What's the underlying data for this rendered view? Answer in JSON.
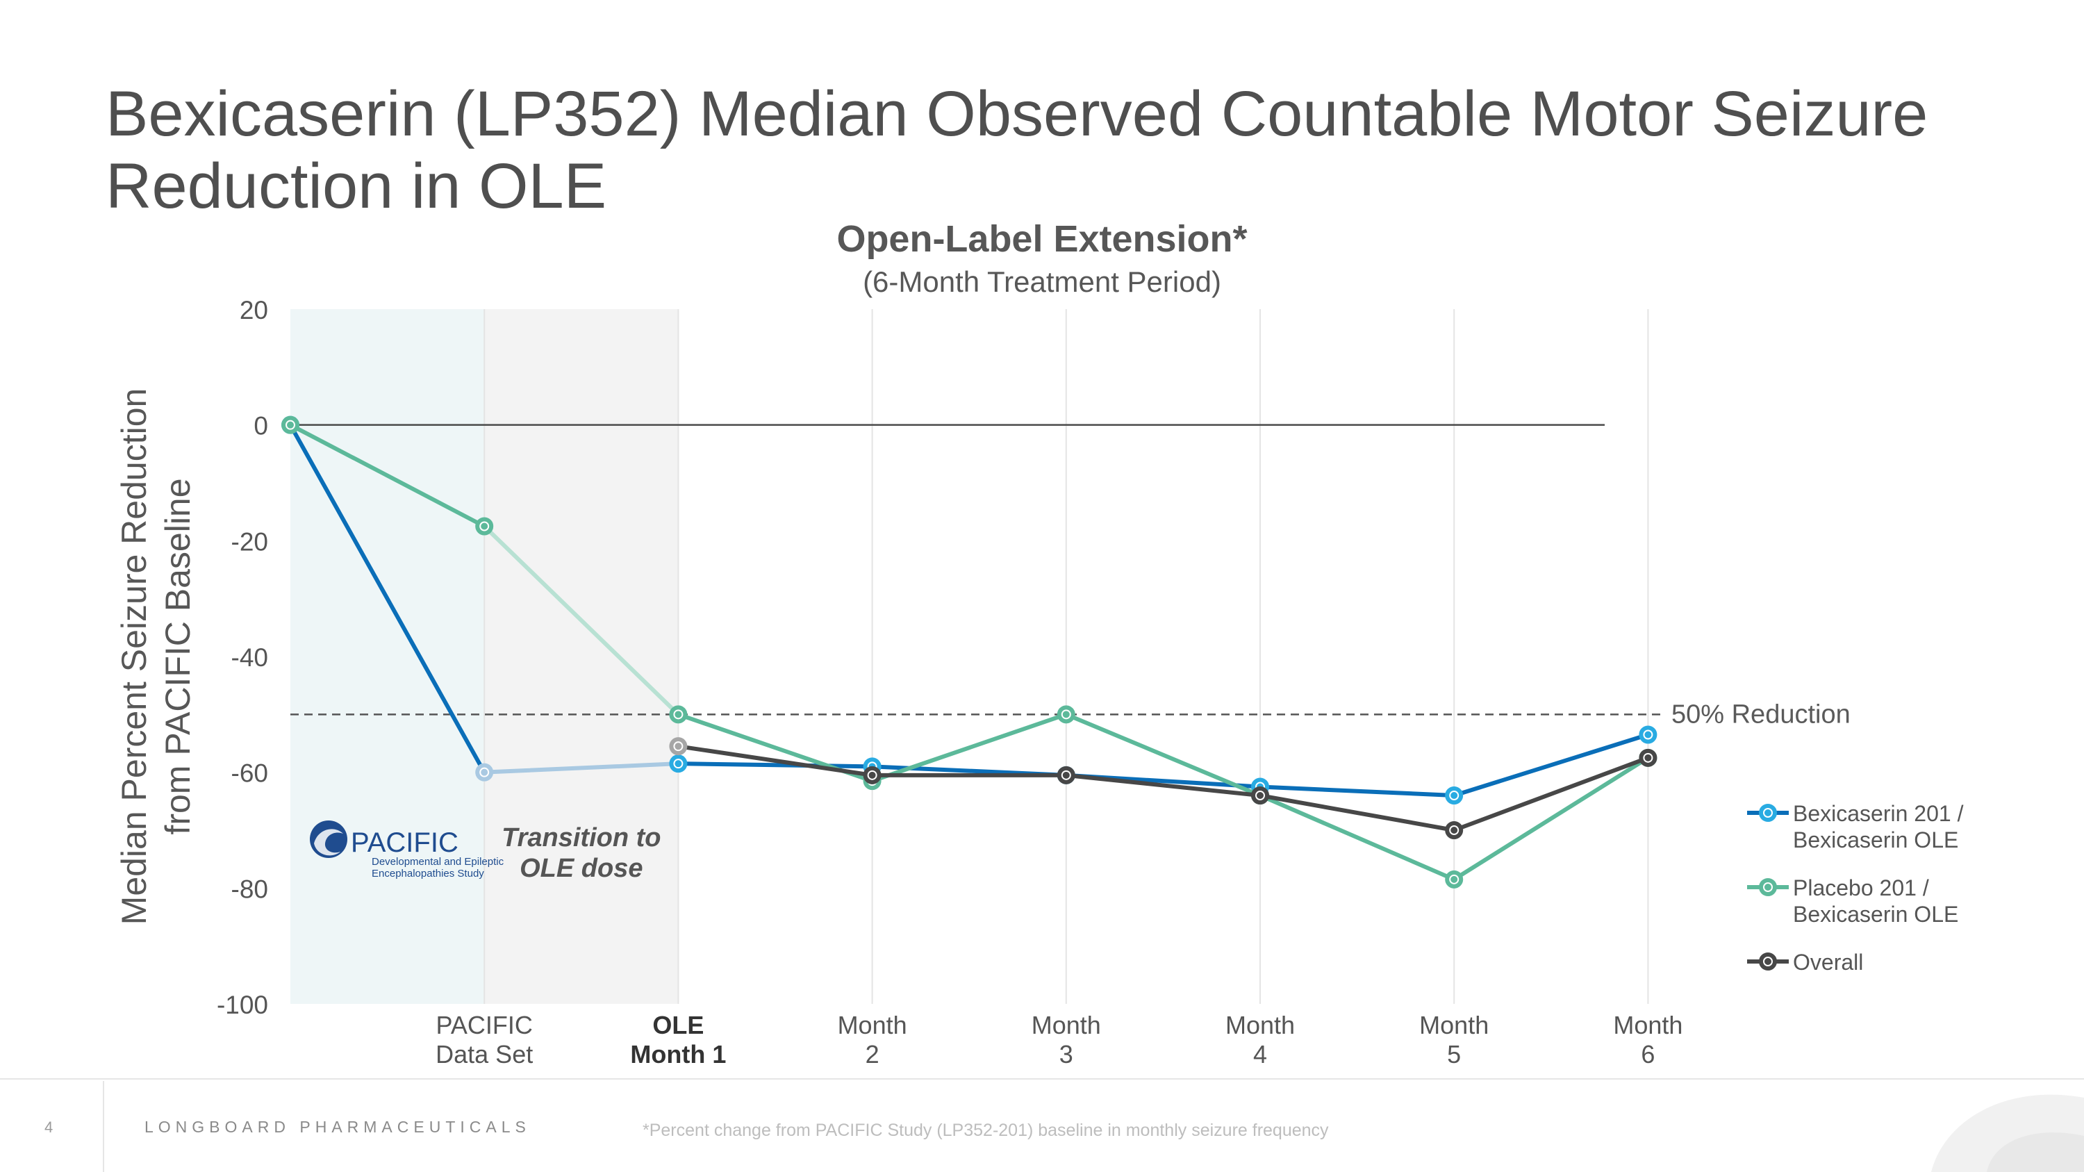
{
  "title": "Bexicaserin (LP352) Median Observed Countable Motor Seizure Reduction in OLE",
  "page_number": "4",
  "company": "LONGBOARD PHARMACEUTICALS",
  "footnote": "*Percent change from PACIFIC Study (LP352-201) baseline in monthly seizure frequency",
  "logo": {
    "name": "PACIFIC",
    "subtitle_line1": "Developmental and Epileptic",
    "subtitle_line2": "Encephalopathies Study"
  },
  "colors": {
    "bexicaserin": "#0a6eb8",
    "bexicaserin_marker": "#29abe2",
    "placebo": "#5cb99a",
    "placebo_faded": "#b8e1d3",
    "bexicaserin_faded": "#a9c9e2",
    "overall": "#474747",
    "overall_faded": "#a6a6a6",
    "pacific_band": "#eef6f7",
    "transition_band": "#f3f3f3"
  },
  "chart_data": {
    "type": "line",
    "title": "Open-Label Extension*",
    "subtitle": "(6-Month Treatment Period)",
    "ylabel_line1": "Median Percent Seizure Reduction",
    "ylabel_line2": "from PACIFIC Baseline",
    "ylim": [
      -100,
      20
    ],
    "yticks": [
      20,
      0,
      -20,
      -40,
      -60,
      -80,
      -100
    ],
    "categories": [
      {
        "line1": "",
        "line2": "",
        "bold": false
      },
      {
        "line1": "PACIFIC",
        "line2": "Data Set",
        "bold": false
      },
      {
        "line1": "OLE",
        "line2": "Month 1",
        "bold": true
      },
      {
        "line1": "Month",
        "line2": "2",
        "bold": false
      },
      {
        "line1": "Month",
        "line2": "3",
        "bold": false
      },
      {
        "line1": "Month",
        "line2": "4",
        "bold": false
      },
      {
        "line1": "Month",
        "line2": "5",
        "bold": false
      },
      {
        "line1": "Month",
        "line2": "6",
        "bold": false
      }
    ],
    "series": [
      {
        "name": "Bexicaserin 201 / Bexicaserin OLE",
        "legend_line1": "Bexicaserin 201 /",
        "legend_line2": "Bexicaserin OLE",
        "color_key": "bexicaserin",
        "marker_key": "bexicaserin_marker",
        "faded_key": "bexicaserin_faded",
        "values": [
          0,
          -60,
          -58.5,
          -59,
          -60.5,
          -62.5,
          -64,
          -53.5
        ]
      },
      {
        "name": "Placebo 201 / Bexicaserin OLE",
        "legend_line1": "Placebo 201 /",
        "legend_line2": "Bexicaserin OLE",
        "color_key": "placebo",
        "marker_key": "placebo",
        "faded_key": "placebo_faded",
        "values": [
          0,
          -17.5,
          -50,
          -61.5,
          -50,
          -64,
          -78.5,
          -57.5
        ]
      },
      {
        "name": "Overall",
        "legend_line1": "Overall",
        "legend_line2": "",
        "color_key": "overall",
        "marker_key": "overall",
        "faded_key": "overall_faded",
        "values": [
          null,
          null,
          -55.5,
          -60.5,
          -60.5,
          -64,
          -70,
          -57.5
        ]
      }
    ],
    "reference_line": {
      "value": -50,
      "label": "50% Reduction"
    },
    "zero_line": 0,
    "transition_label_line1": "Transition to",
    "transition_label_line2": "OLE dose"
  }
}
